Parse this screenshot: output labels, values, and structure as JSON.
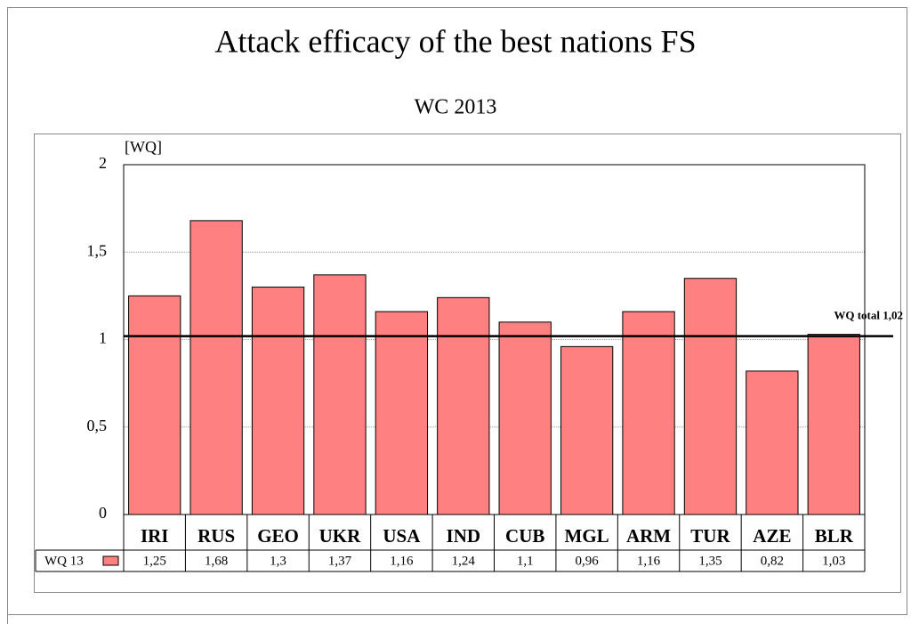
{
  "chart_data": {
    "type": "bar",
    "title": "Attack efficacy of the best nations FS",
    "subtitle": "WC 2013",
    "y_axis_label": "[WQ]",
    "categories": [
      "IRI",
      "RUS",
      "GEO",
      "UKR",
      "USA",
      "IND",
      "CUB",
      "MGL",
      "ARM",
      "TUR",
      "AZE",
      "BLR"
    ],
    "series": [
      {
        "name": "WQ 13",
        "color": "#ff8080",
        "values": [
          1.25,
          1.68,
          1.3,
          1.37,
          1.16,
          1.24,
          1.1,
          0.96,
          1.16,
          1.35,
          0.82,
          1.03
        ],
        "value_labels": [
          "1,25",
          "1,68",
          "1,3",
          "1,37",
          "1,16",
          "1,24",
          "1,1",
          "0,96",
          "1,16",
          "1,35",
          "0,82",
          "1,03"
        ]
      }
    ],
    "ylim": [
      0,
      2
    ],
    "yticks": [
      0,
      {
        "value": 0.5,
        "label": "0,5"
      },
      1,
      {
        "value": 1.5,
        "label": "1,5"
      },
      2
    ],
    "grid": true,
    "reference_line": {
      "value": 1.02,
      "label": "WQ total 1,02"
    }
  }
}
